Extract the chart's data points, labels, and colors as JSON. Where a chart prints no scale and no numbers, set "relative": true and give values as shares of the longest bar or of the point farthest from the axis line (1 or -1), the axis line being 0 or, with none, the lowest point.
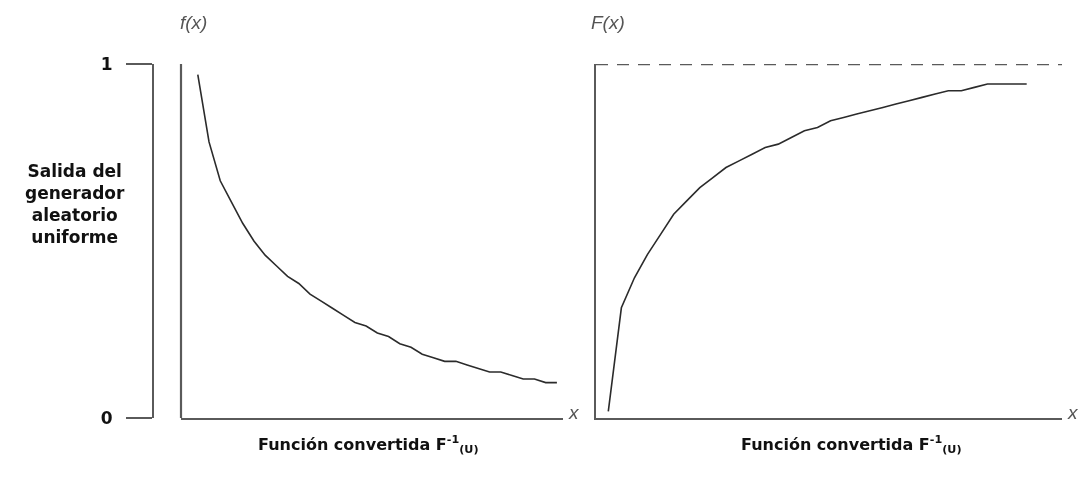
{
  "chart_data": [
    {
      "type": "line",
      "title": "f(x)",
      "ylabel": "Salida del generador aleatorio uniforme",
      "xlabel": "Función convertida F$^{-1}$$_{(U)}$",
      "annotations": [
        "x"
      ],
      "categories": [
        null,
        null,
        null,
        null,
        null,
        null,
        null,
        null,
        null,
        null,
        null,
        null,
        null,
        null,
        null,
        null,
        null,
        null,
        null,
        null,
        null,
        null,
        null,
        null,
        null,
        null,
        null,
        null,
        null,
        null,
        null,
        null,
        null
      ],
      "series": [
        {
          "color": "#2b2b2b",
          "values": [
            0.97,
            0.78,
            0.67,
            0.61,
            0.55,
            0.5,
            0.46,
            0.43,
            0.4,
            0.38,
            0.35,
            0.33,
            0.31,
            0.29,
            0.27,
            0.26,
            0.24,
            0.23,
            0.21,
            0.2,
            0.18,
            0.17,
            0.16,
            0.16,
            0.15,
            0.14,
            0.13,
            0.13,
            0.12,
            0.11,
            0.11,
            0.1,
            0.1
          ]
        }
      ],
      "ylim": [
        0,
        1
      ],
      "yticks": [
        0,
        1
      ],
      "tick_labels": "y"
    },
    {
      "type": "line",
      "title": "F(x)",
      "xlabel": "Función convertida F$^{-1}$$_{(U)}$",
      "annotations": [
        "x"
      ],
      "relative": true,
      "categories": [
        null,
        null,
        null,
        null,
        null,
        null,
        null,
        null,
        null,
        null,
        null,
        null,
        null,
        null,
        null,
        null,
        null,
        null,
        null,
        null,
        null,
        null,
        null,
        null,
        null,
        null,
        null,
        null,
        null,
        null,
        null,
        null,
        null
      ],
      "series": [
        {
          "color": "#2b2b2b",
          "values": [
            0.02,
            0.33,
            0.42,
            0.49,
            0.55,
            0.61,
            0.65,
            0.69,
            0.72,
            0.75,
            0.77,
            0.79,
            0.81,
            0.82,
            0.84,
            0.86,
            0.87,
            0.89,
            0.9,
            0.91,
            0.92,
            0.93,
            0.94,
            0.95,
            0.96,
            0.97,
            0.98,
            0.98,
            0.99,
            1,
            1,
            1,
            1
          ]
        }
      ],
      "tick_labels": false,
      "ref_lines": [
        {
          "axis": "y",
          "value": 1.06,
          "color": "#5a5a5a",
          "line_style": "dashed"
        }
      ]
    }
  ]
}
